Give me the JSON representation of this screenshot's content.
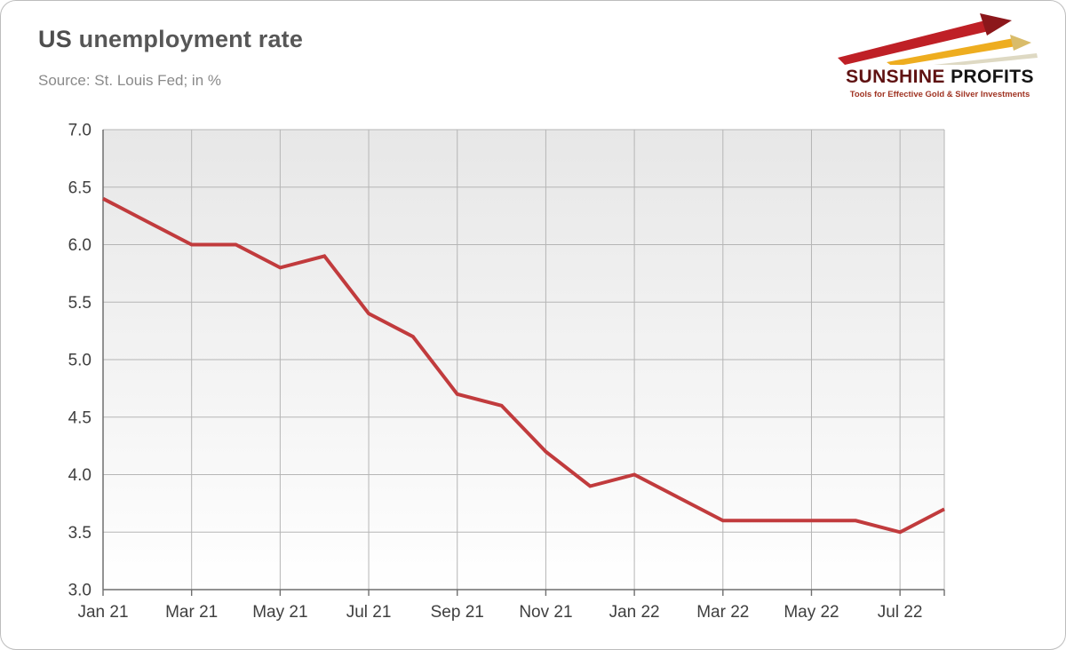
{
  "header": {
    "title_bold": "US",
    "title_rest": " unemployment rate",
    "source": "Source: St. Louis Fed; in %"
  },
  "logo": {
    "name_primary": "SUNSHINE",
    "name_secondary": " PROFITS",
    "tagline": "Tools for Effective Gold & Silver Investments"
  },
  "chart_data": {
    "type": "line",
    "title": "US unemployment rate",
    "source_label": "Source: St. Louis Fed; in %",
    "unit": "%",
    "x": [
      "Jan 21",
      "Feb 21",
      "Mar 21",
      "Apr 21",
      "May 21",
      "Jun 21",
      "Jul 21",
      "Aug 21",
      "Sep 21",
      "Oct 21",
      "Nov 21",
      "Dec 21",
      "Jan 22",
      "Feb 22",
      "Mar 22",
      "Apr 22",
      "May 22",
      "Jun 22",
      "Jul 22",
      "Aug 22"
    ],
    "values": [
      6.4,
      6.2,
      6.0,
      6.0,
      5.8,
      5.9,
      5.4,
      5.2,
      4.7,
      4.6,
      4.2,
      3.9,
      4.0,
      3.8,
      3.6,
      3.6,
      3.6,
      3.6,
      3.5,
      3.7
    ],
    "xtick_labels": [
      "Jan 21",
      "Mar 21",
      "May 21",
      "Jul 21",
      "Sep 21",
      "Nov 21",
      "Jan 22",
      "Mar 22",
      "May 22",
      "Jul 22"
    ],
    "xtick_every": 2,
    "ylim": [
      3.0,
      7.0
    ],
    "ytick_step": 0.5,
    "line_color": "#c13b3d",
    "grid_color": "#b5b5b5",
    "axis_color": "#6f6f6f",
    "grid": true,
    "legend": "none"
  }
}
